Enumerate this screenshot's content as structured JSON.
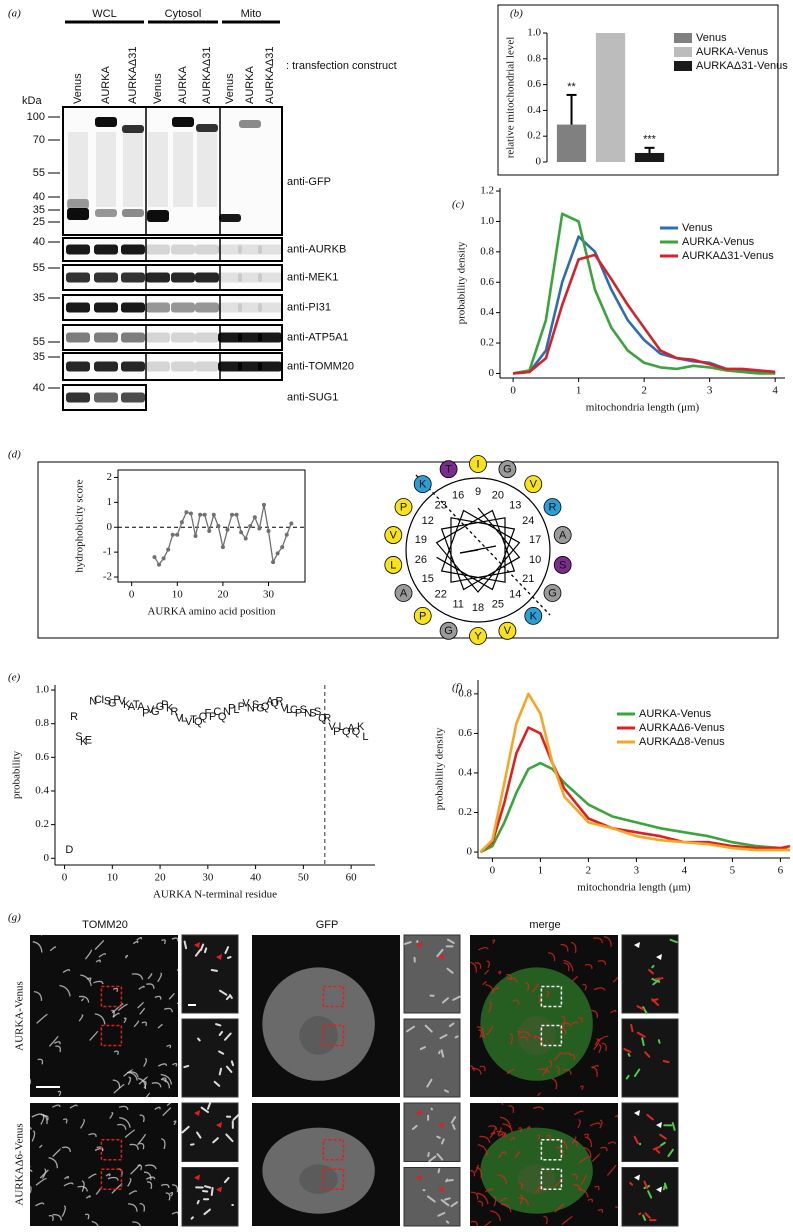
{
  "panel_labels": [
    "(a)",
    "(b)",
    "(c)",
    "(d)",
    "(e)",
    "(f)",
    "(g)"
  ],
  "blot": {
    "groups": [
      "WCL",
      "Cytosol",
      "Mito"
    ],
    "lanes": [
      "Venus",
      "AURKA",
      "AURKAΔ31"
    ],
    "construct_note": ": transfection construct",
    "kda": "kDa",
    "strips": [
      {
        "antibody": "anti-GFP",
        "markers": [
          100,
          70,
          55,
          40,
          35,
          25
        ]
      },
      {
        "antibody": "anti-AURKB",
        "markers": [
          40
        ]
      },
      {
        "antibody": "anti-MEK1",
        "markers": [
          55
        ]
      },
      {
        "antibody": "anti-PI31",
        "markers": [
          35
        ]
      },
      {
        "antibody": "anti-ATP5A1",
        "markers": [
          55
        ]
      },
      {
        "antibody": "anti-TOMM20",
        "markers": [
          35
        ]
      },
      {
        "antibody": "anti-SUG1",
        "markers": [
          40
        ]
      }
    ]
  },
  "helical_wheel": {
    "residues": [
      {
        "letter": "I",
        "color": "#f7e21b"
      },
      {
        "letter": "G",
        "color": "#9a9a9a"
      },
      {
        "letter": "V",
        "color": "#f7e21b"
      },
      {
        "letter": "R",
        "color": "#2a9fd6"
      },
      {
        "letter": "A",
        "color": "#9a9a9a"
      },
      {
        "letter": "S",
        "color": "#7b2d8e"
      },
      {
        "letter": "G",
        "color": "#9a9a9a"
      },
      {
        "letter": "K",
        "color": "#2a9fd6"
      },
      {
        "letter": "V",
        "color": "#f7e21b"
      },
      {
        "letter": "Y",
        "color": "#f7e21b"
      },
      {
        "letter": "G",
        "color": "#9a9a9a"
      },
      {
        "letter": "P",
        "color": "#f7e21b"
      },
      {
        "letter": "A",
        "color": "#9a9a9a"
      },
      {
        "letter": "L",
        "color": "#f7e21b"
      },
      {
        "letter": "V",
        "color": "#f7e21b"
      },
      {
        "letter": "P",
        "color": "#f7e21b"
      },
      {
        "letter": "K",
        "color": "#2a9fd6"
      },
      {
        "letter": "T",
        "color": "#7b2d8e"
      }
    ],
    "positions": [
      9,
      20,
      13,
      24,
      17,
      10,
      21,
      14,
      25,
      18,
      11,
      22,
      15,
      26,
      19,
      12,
      23,
      16
    ]
  },
  "micrographs": {
    "columns": [
      "TOMM20",
      "GFP",
      "merge"
    ],
    "rows": [
      "AURKA-Venus",
      "AURKAΔ6-Venus"
    ]
  },
  "chart_data": [
    {
      "type": "bar",
      "ylabel": "relative mitochondrial level",
      "categories": [
        null
      ],
      "ylim": [
        0,
        1
      ],
      "yticks": [
        0,
        0.2,
        0.4,
        0.6,
        0.8,
        {
          "value": 1,
          "label": "1.0"
        }
      ],
      "legend": "right",
      "series": [
        {
          "name": "Venus",
          "color": "#808080",
          "values": [
            0.29
          ],
          "errors": [
            0.23
          ],
          "annotation": "**"
        },
        {
          "name": "AURKA-Venus",
          "color": "#bcbcbc",
          "values": [
            1.0
          ]
        },
        {
          "name": "AURKAΔ31-Venus",
          "color": "#1a1a1a",
          "values": [
            0.07
          ],
          "errors": [
            0.04
          ],
          "annotation": "***"
        }
      ]
    },
    {
      "type": "line",
      "xlabel": "mitochondria length (μm)",
      "ylabel": "probability density",
      "xlim": [
        -0.2,
        4.15
      ],
      "ylim": [
        -0.03,
        1.22
      ],
      "xticks": [
        0,
        1,
        2,
        3,
        4
      ],
      "yticks": [
        0,
        0.2,
        0.4,
        0.6,
        0.8,
        {
          "value": 1,
          "label": "1.0"
        },
        1.2
      ],
      "legend": "upper right",
      "x": [
        0,
        0.25,
        0.5,
        0.75,
        1,
        1.25,
        1.5,
        1.75,
        2,
        2.25,
        2.5,
        2.75,
        3,
        3.25,
        3.5,
        3.75,
        4
      ],
      "series": [
        {
          "name": "Venus",
          "color": "#2f6db3",
          "values": [
            0,
            0.01,
            0.15,
            0.6,
            0.9,
            0.8,
            0.55,
            0.35,
            0.22,
            0.13,
            0.1,
            0.08,
            0.07,
            0.03,
            0.02,
            0.01,
            0
          ]
        },
        {
          "name": "AURKA-Venus",
          "color": "#3aa53a",
          "values": [
            0,
            0.02,
            0.35,
            1.05,
            1.0,
            0.55,
            0.3,
            0.15,
            0.07,
            0.04,
            0.03,
            0.05,
            0.04,
            0.02,
            0.01,
            0,
            0
          ]
        },
        {
          "name": "AURKAΔ31-Venus",
          "color": "#d7202c",
          "values": [
            0,
            0.01,
            0.1,
            0.45,
            0.75,
            0.78,
            0.62,
            0.45,
            0.3,
            0.15,
            0.1,
            0.09,
            0.06,
            0.03,
            0.03,
            0.02,
            0.01
          ]
        }
      ]
    },
    {
      "type": "line",
      "markers": true,
      "xlabel": "AURKA amino acid position",
      "ylabel": "hydrophobicity score",
      "xlim": [
        -3,
        38
      ],
      "ylim": [
        -2.2,
        2.3
      ],
      "xticks": [
        0,
        10,
        20,
        30
      ],
      "yticks": [
        -2,
        -1,
        0,
        1,
        2
      ],
      "hline": 0,
      "color": "#707070",
      "x": [
        5,
        6,
        7,
        8,
        9,
        10,
        11,
        12,
        13,
        14,
        15,
        16,
        17,
        18,
        19,
        20,
        21,
        22,
        23,
        24,
        25,
        26,
        27,
        28,
        29,
        30,
        31,
        32,
        33,
        34,
        35
      ],
      "values": [
        -1.2,
        -1.5,
        -1.25,
        -0.9,
        -0.3,
        -0.3,
        0.2,
        0.6,
        0.55,
        -0.35,
        0.5,
        0.5,
        -0.15,
        0.5,
        0.05,
        -0.8,
        -0.1,
        0.5,
        0.5,
        -0.2,
        -0.45,
        0.05,
        0.4,
        -0.05,
        0.9,
        -0.15,
        -1.4,
        -1.05,
        -0.8,
        -0.3,
        0.15
      ]
    },
    {
      "type": "scatter",
      "xlabel": "AURKA N-terminal residue",
      "ylabel": "probability",
      "xlim": [
        -2,
        65
      ],
      "ylim": [
        -0.04,
        1.03
      ],
      "xticks": [
        0,
        10,
        20,
        30,
        40,
        50,
        60
      ],
      "yticks": [
        0,
        0.2,
        0.4,
        0.6,
        0.8,
        {
          "value": 1,
          "label": "1.0"
        }
      ],
      "vline": 54.5,
      "x": [
        1,
        2,
        3,
        4,
        5,
        6,
        7,
        8,
        9,
        10,
        11,
        12,
        13,
        14,
        15,
        16,
        17,
        18,
        19,
        20,
        21,
        22,
        23,
        24,
        25,
        26,
        27,
        28,
        29,
        30,
        31,
        32,
        33,
        34,
        35,
        36,
        37,
        38,
        39,
        40,
        41,
        42,
        43,
        44,
        45,
        46,
        47,
        48,
        49,
        50,
        51,
        52,
        53,
        54,
        55,
        56,
        57,
        58,
        59,
        60,
        61,
        62,
        63
      ],
      "labels": [
        "D",
        "R",
        "S",
        "K",
        "E",
        "N",
        "C",
        "I",
        "S",
        "G",
        "P",
        "V",
        "K",
        "A",
        "T",
        "A",
        "P",
        "V",
        "G",
        "G",
        "P",
        "K",
        "R",
        "V",
        "L",
        "V",
        "T",
        "Q",
        "Q",
        "F",
        "P",
        "C",
        "Q",
        "N",
        "P",
        "L",
        "P",
        "V",
        "N",
        "S",
        "G",
        "Q",
        "A",
        "Q",
        "R",
        "V",
        "L",
        "C",
        "P",
        "S",
        "N",
        "S",
        "S",
        "Q",
        "R",
        "V",
        "P",
        "L",
        "Q",
        "A",
        "Q",
        "K",
        "L"
      ],
      "values": [
        0.05,
        0.84,
        0.72,
        0.69,
        0.7,
        0.93,
        0.94,
        0.94,
        0.93,
        0.92,
        0.94,
        0.93,
        0.91,
        0.9,
        0.91,
        0.9,
        0.86,
        0.88,
        0.87,
        0.9,
        0.91,
        0.89,
        0.87,
        0.83,
        0.83,
        0.81,
        0.82,
        0.81,
        0.84,
        0.86,
        0.84,
        0.87,
        0.84,
        0.87,
        0.89,
        0.88,
        0.9,
        0.92,
        0.89,
        0.91,
        0.89,
        0.9,
        0.93,
        0.92,
        0.93,
        0.89,
        0.88,
        0.88,
        0.86,
        0.88,
        0.86,
        0.86,
        0.87,
        0.83,
        0.83,
        0.78,
        0.75,
        0.78,
        0.75,
        0.77,
        0.75,
        0.78,
        0.72
      ]
    },
    {
      "type": "line",
      "xlabel": "mitochondria length (μm)",
      "ylabel": "probability density",
      "xlim": [
        -0.3,
        6.2
      ],
      "ylim": [
        -0.03,
        0.87
      ],
      "xticks": [
        0,
        1,
        2,
        3,
        4,
        5,
        6
      ],
      "yticks": [
        0,
        0.2,
        0.4,
        0.6,
        0.8
      ],
      "legend": "upper right",
      "x": [
        -0.25,
        0,
        0.25,
        0.5,
        0.75,
        1,
        1.25,
        1.5,
        2,
        2.5,
        3,
        3.5,
        4,
        4.5,
        5,
        5.5,
        6,
        6.2
      ],
      "series": [
        {
          "name": "AURKA-Venus",
          "color": "#3aa53a",
          "values": [
            0,
            0.03,
            0.15,
            0.3,
            0.42,
            0.45,
            0.42,
            0.35,
            0.24,
            0.18,
            0.15,
            0.12,
            0.1,
            0.08,
            0.05,
            0.03,
            0.02,
            0.01
          ]
        },
        {
          "name": "AURKAΔ6-Venus",
          "color": "#e02020",
          "values": [
            0,
            0.05,
            0.25,
            0.5,
            0.63,
            0.6,
            0.45,
            0.32,
            0.17,
            0.12,
            0.1,
            0.08,
            0.05,
            0.05,
            0.03,
            0.02,
            0.02,
            0.03
          ]
        },
        {
          "name": "AURKAΔ8-Venus",
          "color": "#f5a623",
          "values": [
            0,
            0.06,
            0.35,
            0.65,
            0.8,
            0.7,
            0.45,
            0.28,
            0.15,
            0.12,
            0.08,
            0.06,
            0.05,
            0.04,
            0.02,
            0.01,
            0.01,
            0.01
          ]
        }
      ]
    }
  ]
}
